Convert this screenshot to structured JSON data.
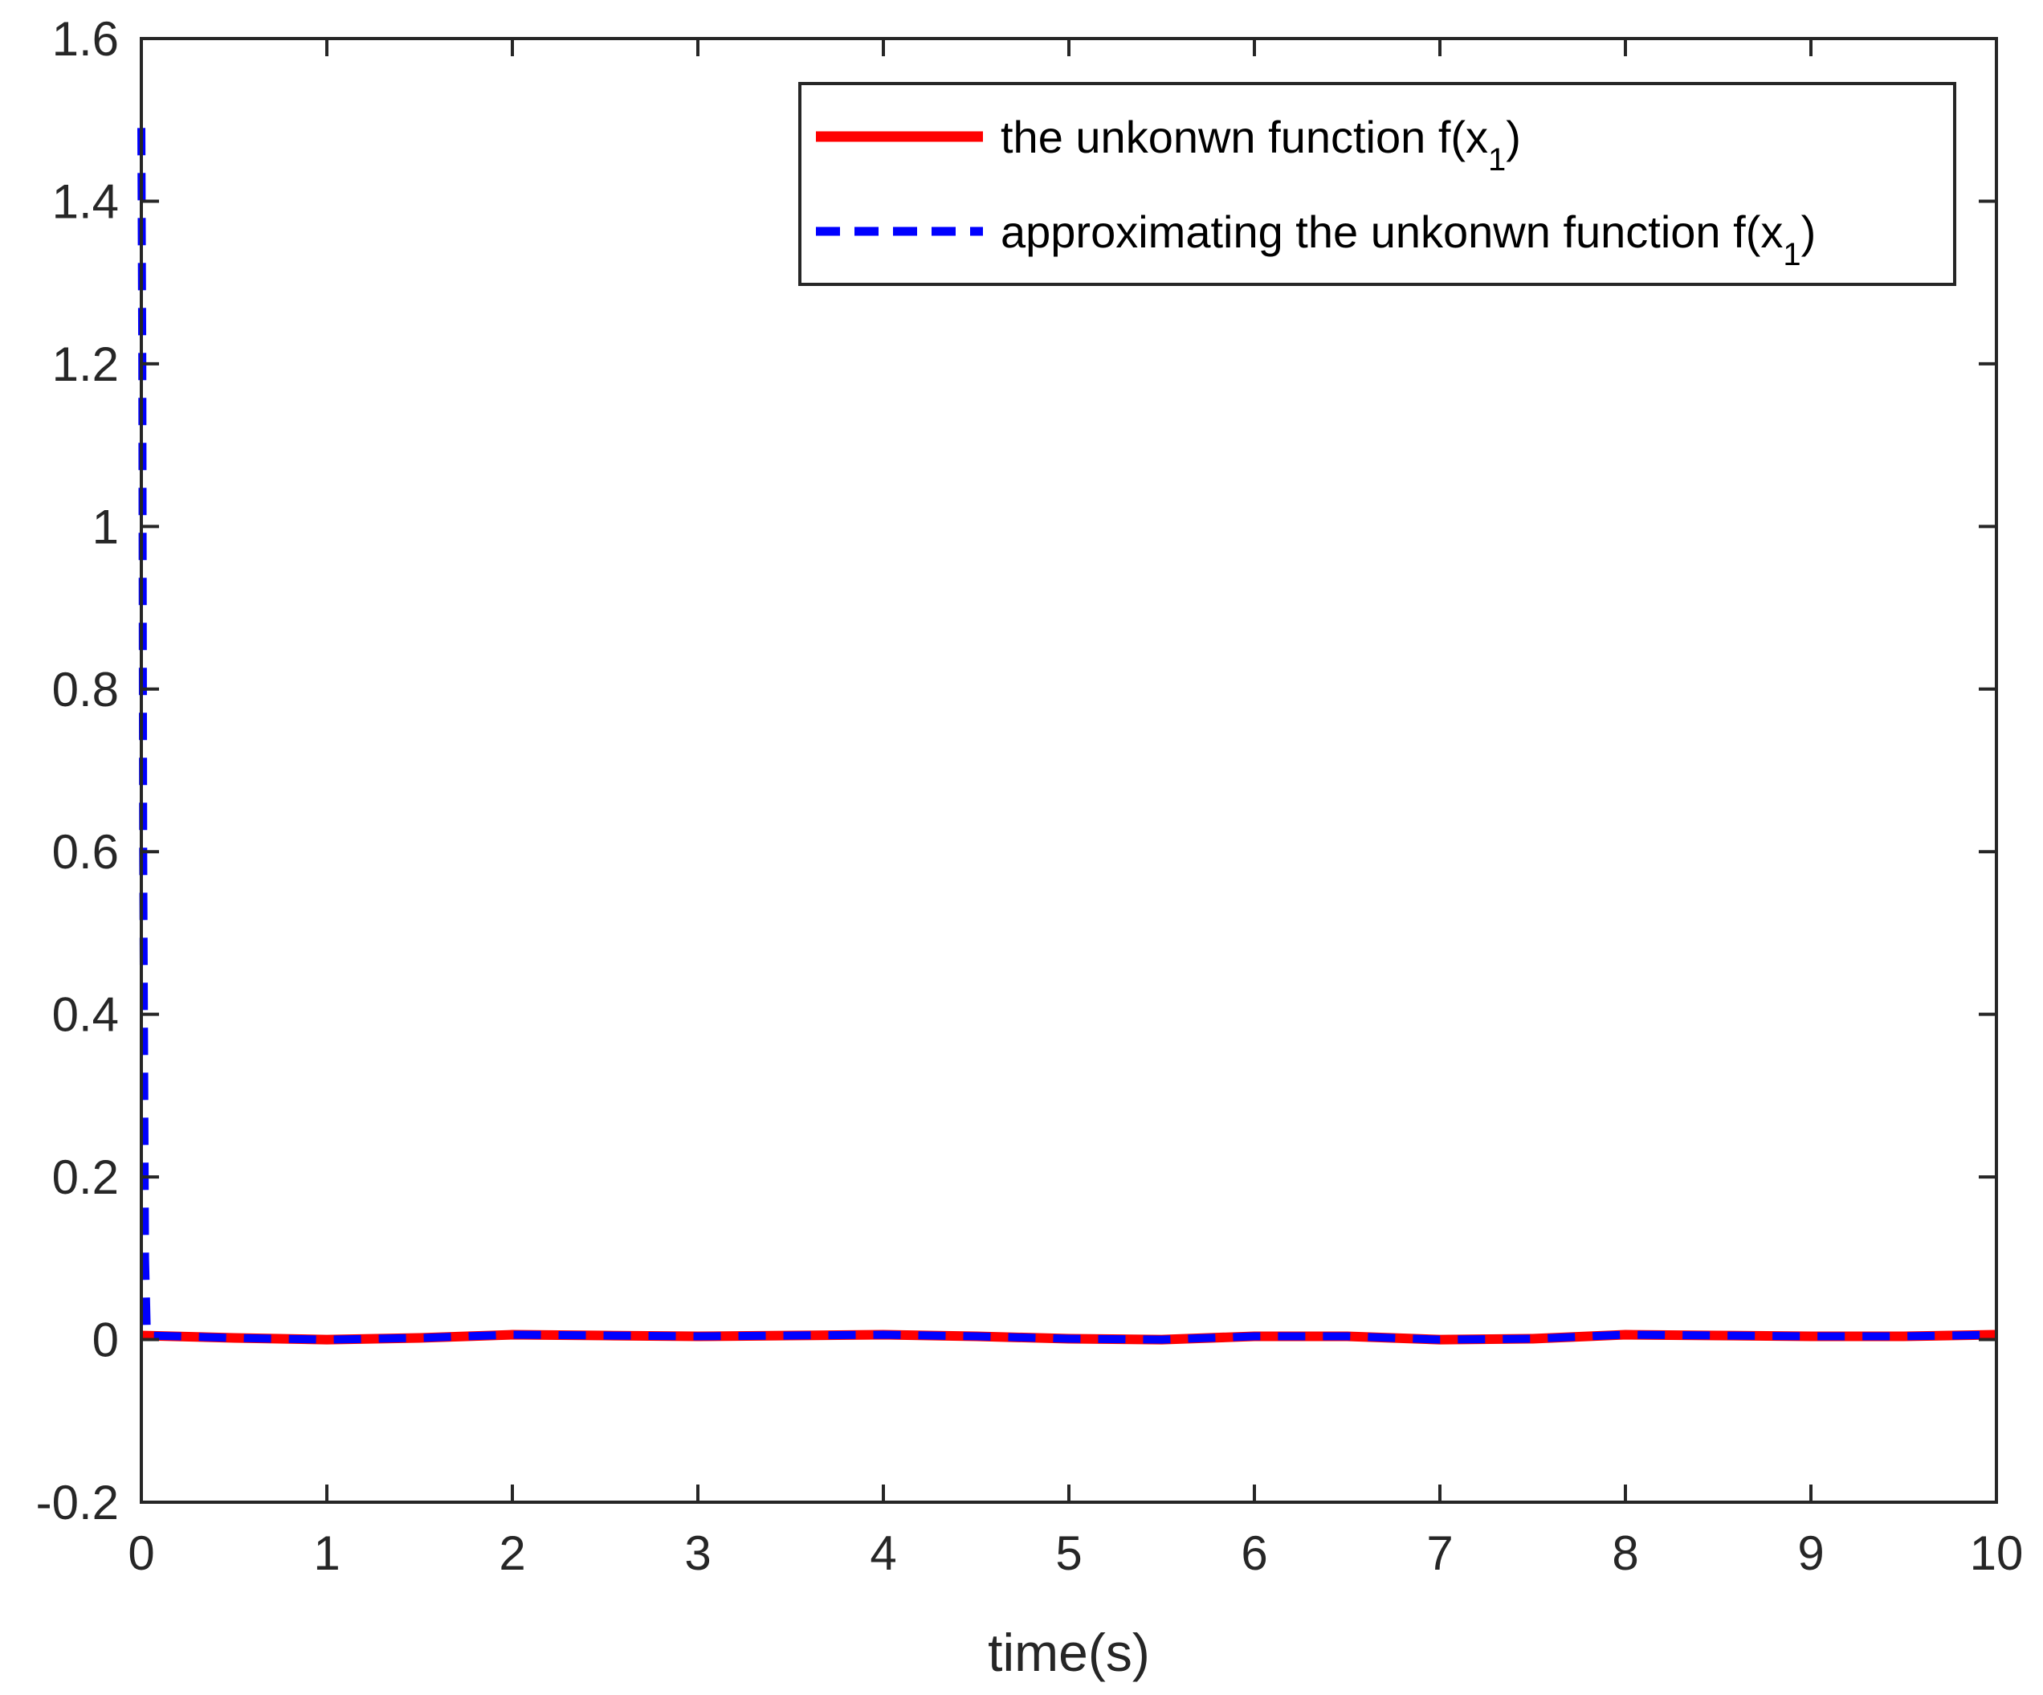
{
  "chart_data": {
    "type": "line",
    "title": "",
    "xlabel": "time(s)",
    "ylabel": "",
    "xlim": [
      0,
      10
    ],
    "ylim": [
      -0.2,
      1.6
    ],
    "xticks": [
      "0",
      "1",
      "2",
      "3",
      "4",
      "5",
      "6",
      "7",
      "8",
      "9",
      "10"
    ],
    "yticks": [
      "-0.2",
      "0",
      "0.2",
      "0.4",
      "0.6",
      "0.8",
      "1",
      "1.2",
      "1.4",
      "1.6"
    ],
    "grid": false,
    "legend_position": "top-right",
    "series": [
      {
        "name": "the unkonwn function f(x",
        "name_sub": "1",
        "name_suffix": ")",
        "color": "#ff0000",
        "style": "solid",
        "x": [
          0,
          0.5,
          1,
          1.5,
          2,
          2.5,
          3,
          3.5,
          4,
          4.5,
          5,
          5.5,
          6,
          6.5,
          7,
          7.5,
          8,
          8.5,
          9,
          9.5,
          10
        ],
        "y": [
          0.005,
          0.002,
          0.0,
          0.002,
          0.006,
          0.005,
          0.004,
          0.005,
          0.006,
          0.004,
          0.001,
          0.0,
          0.004,
          0.004,
          0.0,
          0.001,
          0.006,
          0.005,
          0.004,
          0.004,
          0.006
        ]
      },
      {
        "name": "approximating the unkonwn function f(x",
        "name_sub": "1",
        "name_suffix": ")",
        "color": "#0000ff",
        "style": "dashed",
        "x": [
          0,
          0.005,
          0.01,
          0.02,
          0.03,
          0.5,
          1,
          1.5,
          2,
          2.5,
          3,
          3.5,
          4,
          4.5,
          5,
          5.5,
          6,
          6.5,
          7,
          7.5,
          8,
          8.5,
          9,
          9.5,
          10
        ],
        "y": [
          1.49,
          1.2,
          0.6,
          0.1,
          0.005,
          0.002,
          0.0,
          0.002,
          0.006,
          0.005,
          0.004,
          0.005,
          0.006,
          0.004,
          0.001,
          0.0,
          0.004,
          0.004,
          0.0,
          0.001,
          0.006,
          0.005,
          0.004,
          0.004,
          0.006
        ]
      }
    ]
  }
}
